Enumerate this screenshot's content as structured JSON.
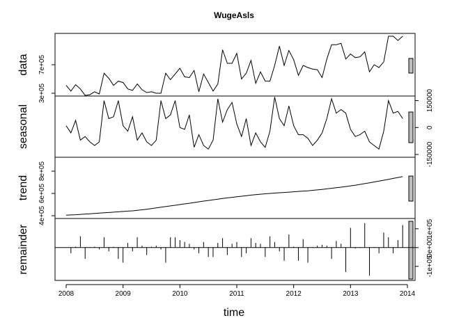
{
  "chart_data": {
    "type": "line",
    "title": "WugeAsls",
    "xlabel": "time",
    "xlim": [
      2008,
      2014
    ],
    "x_ticks": [
      2008,
      2009,
      2010,
      2011,
      2012,
      2013,
      2014
    ],
    "x_tick_labels": [
      "2008",
      "2009",
      "2010",
      "2011",
      "2012",
      "2013",
      "2014"
    ],
    "x_start": 2008.0,
    "x_step": 0.08333,
    "panels": [
      {
        "name": "data",
        "type": "line",
        "ylim": [
          300000,
          1100000
        ],
        "y_ticks": [
          300000,
          700000
        ],
        "y_tick_labels": [
          "3e+05",
          "7e+05"
        ],
        "tick_side": "left",
        "values": [
          410000,
          330000,
          420000,
          360000,
          270000,
          280000,
          320000,
          290000,
          580000,
          510000,
          410000,
          470000,
          450000,
          360000,
          340000,
          430000,
          350000,
          310000,
          320000,
          300000,
          300000,
          580000,
          490000,
          570000,
          650000,
          530000,
          520000,
          620000,
          320000,
          570000,
          450000,
          330000,
          430000,
          910000,
          720000,
          720000,
          860000,
          500000,
          580000,
          760000,
          440000,
          600000,
          470000,
          470000,
          690000,
          960000,
          690000,
          900000,
          770000,
          550000,
          690000,
          660000,
          640000,
          630000,
          520000,
          780000,
          980000,
          980000,
          1000000,
          780000,
          850000,
          800000,
          810000,
          880000,
          600000,
          700000,
          660000,
          740000,
          1100000,
          1100000,
          1040000,
          1100000
        ]
      },
      {
        "name": "seasonal",
        "type": "line",
        "ylim": [
          -150000,
          160000
        ],
        "y_ticks": [
          -150000,
          0,
          150000
        ],
        "y_tick_labels": [
          "-150000",
          "0",
          "150000"
        ],
        "tick_side": "right",
        "values": [
          10000,
          -30000,
          40000,
          -70000,
          -50000,
          -80000,
          -100000,
          -80000,
          150000,
          50000,
          60000,
          150000,
          10000,
          -20000,
          60000,
          -70000,
          -30000,
          -80000,
          -100000,
          -70000,
          150000,
          50000,
          70000,
          150000,
          0,
          -10000,
          70000,
          -110000,
          -40000,
          -100000,
          -120000,
          -70000,
          160000,
          30000,
          100000,
          140000,
          20000,
          -50000,
          50000,
          -100000,
          -30000,
          -80000,
          -110000,
          -20000,
          170000,
          50000,
          10000,
          120000,
          10000,
          -40000,
          -40000,
          -60000,
          -100000,
          -70000,
          -30000,
          50000,
          160000,
          80000,
          100000,
          80000,
          -10000,
          -50000,
          -40000,
          -20000,
          -80000,
          -100000,
          -120000,
          -20000,
          150000,
          80000,
          90000,
          50000
        ]
      },
      {
        "name": "trend",
        "type": "line",
        "ylim": [
          400000,
          900000
        ],
        "y_ticks": [
          400000,
          600000,
          800000
        ],
        "y_tick_labels": [
          "4e+05",
          "6e+05",
          "8e+05"
        ],
        "tick_side": "left",
        "values": [
          405000,
          407000,
          409000,
          412000,
          415000,
          417000,
          420000,
          423000,
          426000,
          429000,
          432000,
          435000,
          438000,
          441000,
          444000,
          448000,
          453000,
          458000,
          464000,
          470000,
          476000,
          482000,
          488000,
          494000,
          500000,
          506000,
          512000,
          518000,
          525000,
          531000,
          537000,
          543000,
          549000,
          555000,
          560000,
          565000,
          570000,
          575000,
          580000,
          585000,
          589000,
          593000,
          597000,
          600000,
          603000,
          606000,
          609000,
          612000,
          615000,
          618000,
          621000,
          624000,
          628000,
          632000,
          636000,
          641000,
          646000,
          651000,
          656000,
          662000,
          668000,
          674000,
          681000,
          688000,
          695000,
          703000,
          711000,
          719000,
          727000,
          735000,
          743000,
          751000
        ]
      },
      {
        "name": "remainder",
        "type": "bar",
        "ylim": [
          -160000,
          140000
        ],
        "y_ticks": [
          -100000,
          0,
          100000
        ],
        "y_tick_labels": [
          "-1e+05",
          "0e+00",
          "1e+05"
        ],
        "tick_side": "right",
        "values": [
          0,
          -30000,
          5000,
          60000,
          -60000,
          3000,
          5000,
          -10000,
          55000,
          -20000,
          4000,
          -60000,
          -80000,
          25000,
          -20000,
          55000,
          10000,
          -40000,
          5000,
          10000,
          -10000,
          -80000,
          55000,
          55000,
          40000,
          30000,
          20000,
          -10000,
          -30000,
          30000,
          -50000,
          -50000,
          25000,
          50000,
          -40000,
          20000,
          30000,
          -50000,
          -30000,
          50000,
          25000,
          20000,
          -50000,
          60000,
          30000,
          -20000,
          -70000,
          70000,
          5000,
          -70000,
          45000,
          -80000,
          3000,
          10000,
          15000,
          10000,
          -60000,
          35000,
          20000,
          -130000,
          105000,
          -5000,
          3000,
          130000,
          -150000,
          3000,
          -30000,
          80000,
          55000,
          -30000,
          40000,
          120000
        ]
      }
    ]
  }
}
